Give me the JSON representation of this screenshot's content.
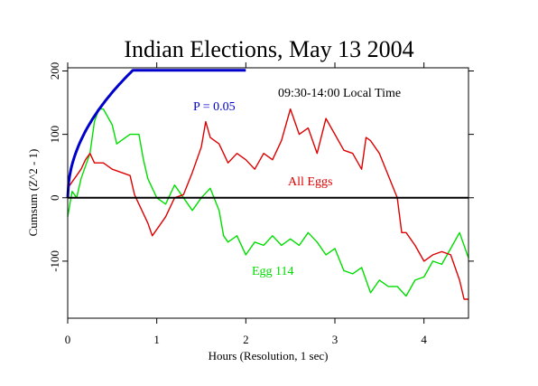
{
  "chart_data": {
    "type": "line",
    "title": "Indian Elections, May 13 2004",
    "xlabel": "Hours (Resolution, 1 sec)",
    "ylabel": "Cumsum (Z^2 - 1)",
    "xlim": [
      0,
      4.5
    ],
    "ylim": [
      -190,
      205
    ],
    "x_ticks": [
      0,
      1,
      2,
      3,
      4
    ],
    "y_ticks": [
      -100,
      0,
      100,
      200
    ],
    "grid": false,
    "annotations": {
      "time_range": "09:30-14:00 Local Time",
      "probability": "P = 0.05"
    },
    "colors": {
      "all_eggs": "#dd0000",
      "egg_114": "#00dd00",
      "p05": "#0000cc",
      "zero_line": "#000000"
    },
    "series": [
      {
        "name": "All Eggs",
        "color": "#dd0000",
        "x": [
          0,
          0.05,
          0.1,
          0.15,
          0.2,
          0.25,
          0.3,
          0.4,
          0.5,
          0.6,
          0.7,
          0.75,
          0.8,
          0.9,
          0.95,
          1.0,
          1.1,
          1.2,
          1.3,
          1.4,
          1.5,
          1.55,
          1.6,
          1.7,
          1.8,
          1.9,
          2.0,
          2.1,
          2.2,
          2.3,
          2.4,
          2.5,
          2.6,
          2.7,
          2.8,
          2.9,
          3.0,
          3.1,
          3.2,
          3.3,
          3.35,
          3.4,
          3.5,
          3.6,
          3.7,
          3.75,
          3.8,
          3.9,
          4.0,
          4.1,
          4.2,
          4.3,
          4.4,
          4.45,
          4.5
        ],
        "y": [
          15,
          25,
          35,
          45,
          60,
          70,
          55,
          55,
          45,
          40,
          35,
          5,
          -10,
          -40,
          -60,
          -50,
          -30,
          0,
          5,
          40,
          80,
          120,
          95,
          85,
          55,
          70,
          60,
          45,
          70,
          60,
          90,
          140,
          100,
          110,
          70,
          125,
          100,
          75,
          70,
          45,
          95,
          90,
          70,
          35,
          0,
          -55,
          -55,
          -75,
          -100,
          -90,
          -85,
          -90,
          -130,
          -160,
          -160
        ]
      },
      {
        "name": "Egg 114",
        "color": "#00dd00",
        "x": [
          0,
          0.05,
          0.1,
          0.15,
          0.2,
          0.25,
          0.3,
          0.35,
          0.4,
          0.5,
          0.55,
          0.6,
          0.7,
          0.8,
          0.85,
          0.9,
          1.0,
          1.1,
          1.2,
          1.3,
          1.4,
          1.5,
          1.6,
          1.7,
          1.75,
          1.8,
          1.9,
          2.0,
          2.1,
          2.2,
          2.3,
          2.4,
          2.5,
          2.6,
          2.7,
          2.8,
          2.9,
          3.0,
          3.1,
          3.2,
          3.3,
          3.4,
          3.5,
          3.6,
          3.7,
          3.8,
          3.9,
          4.0,
          4.1,
          4.2,
          4.3,
          4.4,
          4.5
        ],
        "y": [
          -30,
          10,
          0,
          30,
          50,
          70,
          120,
          140,
          140,
          115,
          85,
          90,
          100,
          100,
          60,
          30,
          0,
          -10,
          20,
          0,
          -20,
          0,
          15,
          -20,
          -60,
          -70,
          -60,
          -90,
          -70,
          -75,
          -60,
          -75,
          -65,
          -75,
          -55,
          -70,
          -90,
          -80,
          -115,
          -120,
          -110,
          -150,
          -130,
          -140,
          -140,
          -155,
          -130,
          -125,
          -100,
          -105,
          -80,
          -55,
          -95
        ]
      },
      {
        "name": "P = 0.05",
        "color": "#0000cc",
        "formula": "2.77*sqrt(2*3600*t)"
      }
    ]
  }
}
